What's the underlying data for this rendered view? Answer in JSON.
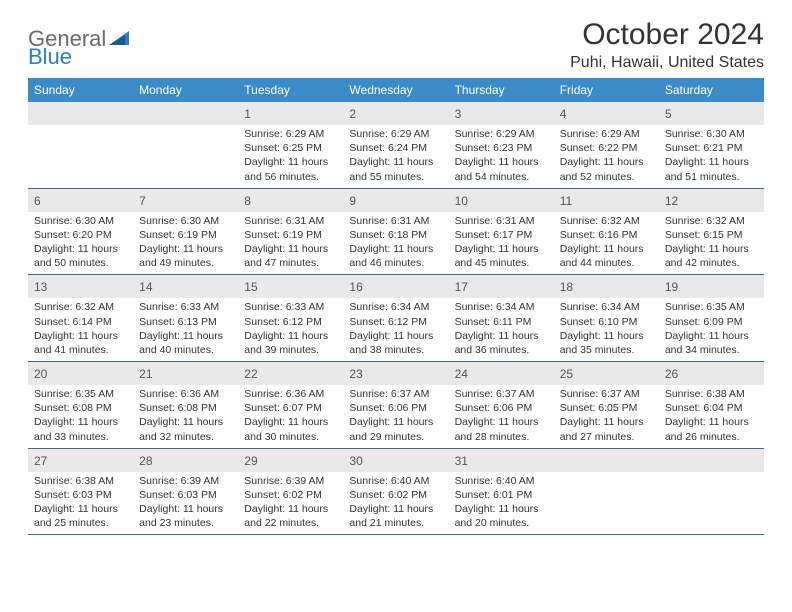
{
  "brand": {
    "left": "General",
    "right": "Blue"
  },
  "title": "October 2024",
  "location": "Puhi, Hawaii, United States",
  "colors": {
    "header_bg": "#3b8bc9",
    "header_text": "#ffffff",
    "cell_border": "#3b6a8f",
    "daynum_bg": "#e9e9e9",
    "text": "#333333",
    "logo_gray": "#6b6b6b",
    "logo_blue": "#2f7fc2"
  },
  "typography": {
    "title_fontsize": 30,
    "location_fontsize": 16,
    "weekday_fontsize": 12,
    "daynum_fontsize": 12,
    "body_fontsize": 10.5
  },
  "weekdays": [
    "Sunday",
    "Monday",
    "Tuesday",
    "Wednesday",
    "Thursday",
    "Friday",
    "Saturday"
  ],
  "weeks": [
    [
      null,
      null,
      {
        "n": "1",
        "lines": [
          "Sunrise: 6:29 AM",
          "Sunset: 6:25 PM",
          "Daylight: 11 hours and 56 minutes."
        ]
      },
      {
        "n": "2",
        "lines": [
          "Sunrise: 6:29 AM",
          "Sunset: 6:24 PM",
          "Daylight: 11 hours and 55 minutes."
        ]
      },
      {
        "n": "3",
        "lines": [
          "Sunrise: 6:29 AM",
          "Sunset: 6:23 PM",
          "Daylight: 11 hours and 54 minutes."
        ]
      },
      {
        "n": "4",
        "lines": [
          "Sunrise: 6:29 AM",
          "Sunset: 6:22 PM",
          "Daylight: 11 hours and 52 minutes."
        ]
      },
      {
        "n": "5",
        "lines": [
          "Sunrise: 6:30 AM",
          "Sunset: 6:21 PM",
          "Daylight: 11 hours and 51 minutes."
        ]
      }
    ],
    [
      {
        "n": "6",
        "lines": [
          "Sunrise: 6:30 AM",
          "Sunset: 6:20 PM",
          "Daylight: 11 hours and 50 minutes."
        ]
      },
      {
        "n": "7",
        "lines": [
          "Sunrise: 6:30 AM",
          "Sunset: 6:19 PM",
          "Daylight: 11 hours and 49 minutes."
        ]
      },
      {
        "n": "8",
        "lines": [
          "Sunrise: 6:31 AM",
          "Sunset: 6:19 PM",
          "Daylight: 11 hours and 47 minutes."
        ]
      },
      {
        "n": "9",
        "lines": [
          "Sunrise: 6:31 AM",
          "Sunset: 6:18 PM",
          "Daylight: 11 hours and 46 minutes."
        ]
      },
      {
        "n": "10",
        "lines": [
          "Sunrise: 6:31 AM",
          "Sunset: 6:17 PM",
          "Daylight: 11 hours and 45 minutes."
        ]
      },
      {
        "n": "11",
        "lines": [
          "Sunrise: 6:32 AM",
          "Sunset: 6:16 PM",
          "Daylight: 11 hours and 44 minutes."
        ]
      },
      {
        "n": "12",
        "lines": [
          "Sunrise: 6:32 AM",
          "Sunset: 6:15 PM",
          "Daylight: 11 hours and 42 minutes."
        ]
      }
    ],
    [
      {
        "n": "13",
        "lines": [
          "Sunrise: 6:32 AM",
          "Sunset: 6:14 PM",
          "Daylight: 11 hours and 41 minutes."
        ]
      },
      {
        "n": "14",
        "lines": [
          "Sunrise: 6:33 AM",
          "Sunset: 6:13 PM",
          "Daylight: 11 hours and 40 minutes."
        ]
      },
      {
        "n": "15",
        "lines": [
          "Sunrise: 6:33 AM",
          "Sunset: 6:12 PM",
          "Daylight: 11 hours and 39 minutes."
        ]
      },
      {
        "n": "16",
        "lines": [
          "Sunrise: 6:34 AM",
          "Sunset: 6:12 PM",
          "Daylight: 11 hours and 38 minutes."
        ]
      },
      {
        "n": "17",
        "lines": [
          "Sunrise: 6:34 AM",
          "Sunset: 6:11 PM",
          "Daylight: 11 hours and 36 minutes."
        ]
      },
      {
        "n": "18",
        "lines": [
          "Sunrise: 6:34 AM",
          "Sunset: 6:10 PM",
          "Daylight: 11 hours and 35 minutes."
        ]
      },
      {
        "n": "19",
        "lines": [
          "Sunrise: 6:35 AM",
          "Sunset: 6:09 PM",
          "Daylight: 11 hours and 34 minutes."
        ]
      }
    ],
    [
      {
        "n": "20",
        "lines": [
          "Sunrise: 6:35 AM",
          "Sunset: 6:08 PM",
          "Daylight: 11 hours and 33 minutes."
        ]
      },
      {
        "n": "21",
        "lines": [
          "Sunrise: 6:36 AM",
          "Sunset: 6:08 PM",
          "Daylight: 11 hours and 32 minutes."
        ]
      },
      {
        "n": "22",
        "lines": [
          "Sunrise: 6:36 AM",
          "Sunset: 6:07 PM",
          "Daylight: 11 hours and 30 minutes."
        ]
      },
      {
        "n": "23",
        "lines": [
          "Sunrise: 6:37 AM",
          "Sunset: 6:06 PM",
          "Daylight: 11 hours and 29 minutes."
        ]
      },
      {
        "n": "24",
        "lines": [
          "Sunrise: 6:37 AM",
          "Sunset: 6:06 PM",
          "Daylight: 11 hours and 28 minutes."
        ]
      },
      {
        "n": "25",
        "lines": [
          "Sunrise: 6:37 AM",
          "Sunset: 6:05 PM",
          "Daylight: 11 hours and 27 minutes."
        ]
      },
      {
        "n": "26",
        "lines": [
          "Sunrise: 6:38 AM",
          "Sunset: 6:04 PM",
          "Daylight: 11 hours and 26 minutes."
        ]
      }
    ],
    [
      {
        "n": "27",
        "lines": [
          "Sunrise: 6:38 AM",
          "Sunset: 6:03 PM",
          "Daylight: 11 hours and 25 minutes."
        ]
      },
      {
        "n": "28",
        "lines": [
          "Sunrise: 6:39 AM",
          "Sunset: 6:03 PM",
          "Daylight: 11 hours and 23 minutes."
        ]
      },
      {
        "n": "29",
        "lines": [
          "Sunrise: 6:39 AM",
          "Sunset: 6:02 PM",
          "Daylight: 11 hours and 22 minutes."
        ]
      },
      {
        "n": "30",
        "lines": [
          "Sunrise: 6:40 AM",
          "Sunset: 6:02 PM",
          "Daylight: 11 hours and 21 minutes."
        ]
      },
      {
        "n": "31",
        "lines": [
          "Sunrise: 6:40 AM",
          "Sunset: 6:01 PM",
          "Daylight: 11 hours and 20 minutes."
        ]
      },
      null,
      null
    ]
  ]
}
